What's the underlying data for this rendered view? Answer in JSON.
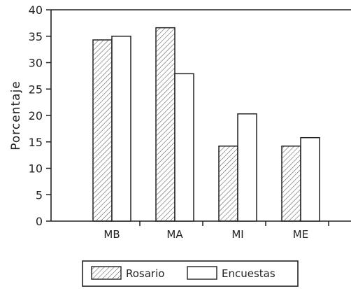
{
  "chart_data": {
    "type": "bar",
    "title": "",
    "xlabel": "",
    "ylabel": "Porcentaje",
    "categories": [
      "MB",
      "MA",
      "MI",
      "ME"
    ],
    "series": [
      {
        "name": "Rosario",
        "values": [
          34.3,
          36.6,
          14.2,
          14.2
        ],
        "pattern": "hatched"
      },
      {
        "name": "Encuestas",
        "values": [
          35.0,
          27.9,
          20.3,
          15.8
        ],
        "pattern": "blank"
      }
    ],
    "ylim": [
      0,
      40
    ],
    "yticks": [
      0,
      5,
      10,
      15,
      20,
      25,
      30,
      35,
      40
    ],
    "legend": "bottom",
    "grid": false
  }
}
